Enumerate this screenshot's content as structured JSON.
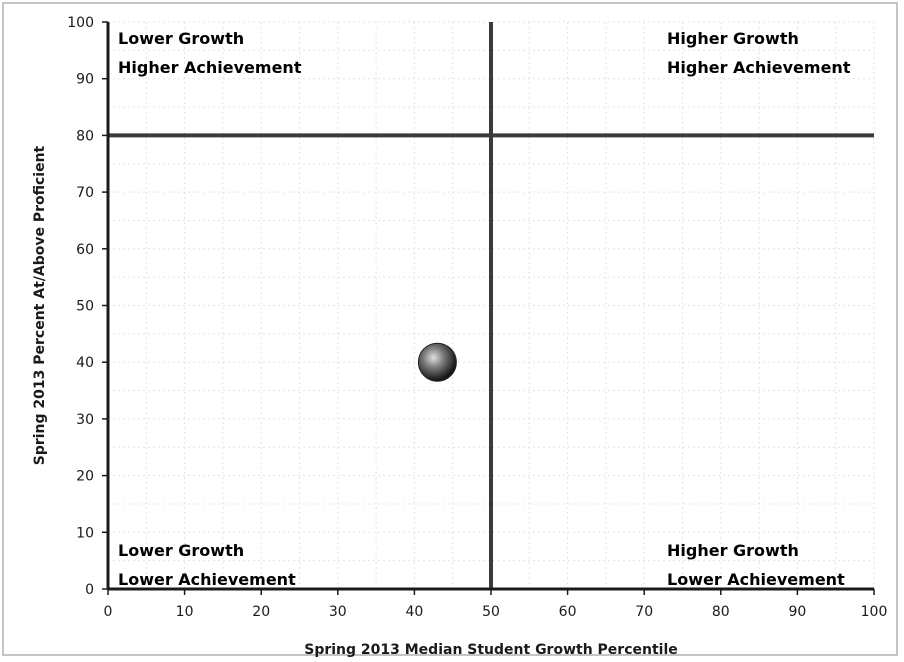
{
  "chart_data": {
    "type": "scatter",
    "title": "",
    "xlabel": "Spring 2013 Median Student Growth Percentile",
    "ylabel": "Spring 2013 Percent At/Above Proficient",
    "xlim": [
      0,
      100
    ],
    "ylim": [
      0,
      100
    ],
    "xticks": [
      0,
      10,
      20,
      30,
      40,
      50,
      60,
      70,
      80,
      90,
      100
    ],
    "yticks": [
      0,
      10,
      20,
      30,
      40,
      50,
      60,
      70,
      80,
      90,
      100
    ],
    "grid": true,
    "legend": "none",
    "points": [
      {
        "x": 43,
        "y": 40
      }
    ],
    "reference_lines": [
      {
        "axis": "x",
        "value": 50
      },
      {
        "axis": "y",
        "value": 80
      }
    ],
    "quadrant_labels": [
      {
        "position": "top-left",
        "lines": [
          "Lower Growth",
          "Higher Achievement"
        ]
      },
      {
        "position": "top-right",
        "lines": [
          "Higher Growth",
          "Higher Achievement"
        ]
      },
      {
        "position": "bottom-left",
        "lines": [
          "Lower Growth",
          "Lower Achievement"
        ]
      },
      {
        "position": "bottom-right",
        "lines": [
          "Higher Growth",
          "Lower Achievement"
        ]
      }
    ],
    "colors": {
      "axis": "#1a1a1a",
      "reference_line": "#3a3a3a",
      "grid": "#e3e3e3",
      "point": "#444444",
      "point_highlight": "#d8d8d8"
    }
  }
}
